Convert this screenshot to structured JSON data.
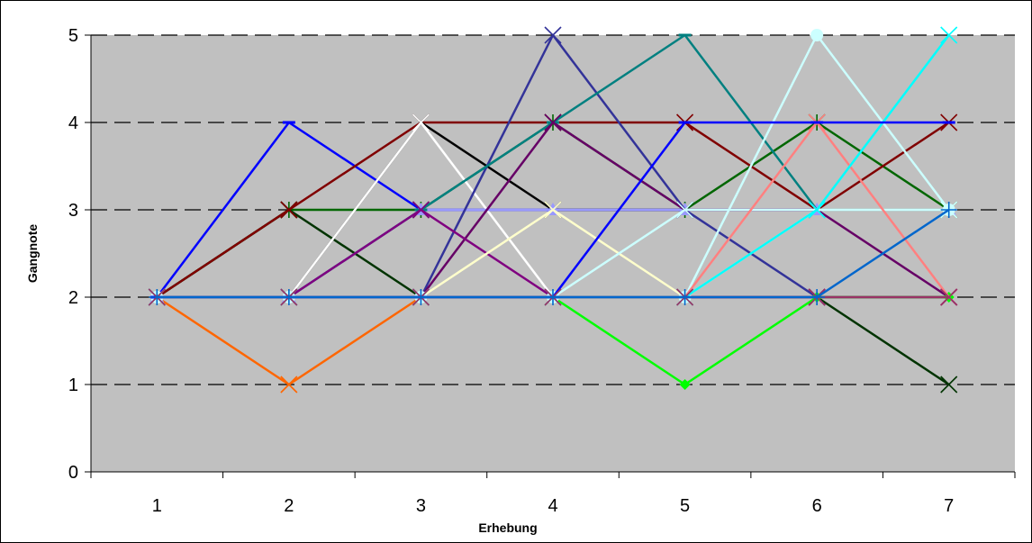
{
  "chart_data": {
    "type": "line",
    "title": "",
    "xlabel": "Erhebung",
    "ylabel": "Gangnote",
    "x": [
      1,
      2,
      3,
      4,
      5,
      6,
      7
    ],
    "ylim": [
      0,
      5
    ],
    "y_ticks": [
      0,
      1,
      2,
      3,
      4,
      5
    ],
    "grid": "dashed-horizontal",
    "legend": "none",
    "plot_background": "#c0c0c0",
    "series": [
      {
        "color": "#ff6600",
        "marker": "x",
        "values": [
          2,
          1,
          2,
          2,
          2,
          2,
          2
        ]
      },
      {
        "color": "#0000ff",
        "marker": "dash",
        "values": [
          2,
          4,
          3,
          3,
          3,
          3,
          3
        ]
      },
      {
        "color": "#006600",
        "marker": "star",
        "values": [
          2,
          3,
          3,
          4,
          3,
          4,
          3
        ]
      },
      {
        "color": "#003300",
        "marker": "x",
        "values": [
          2,
          3,
          2,
          2,
          2,
          2,
          1
        ]
      },
      {
        "color": "#800000",
        "marker": "x",
        "values": [
          2,
          3,
          4,
          4,
          4,
          3,
          4
        ]
      },
      {
        "color": "#000000",
        "marker": "x",
        "values": [
          2,
          2,
          4,
          3,
          3,
          3,
          3
        ]
      },
      {
        "color": "#ffffff",
        "marker": "x",
        "values": [
          2,
          2,
          4,
          2,
          2,
          2,
          2
        ]
      },
      {
        "color": "#9999ff",
        "marker": "triangle",
        "values": [
          2,
          2,
          3,
          3,
          3,
          3,
          3
        ]
      },
      {
        "color": "#333399",
        "marker": "x",
        "values": [
          2,
          2,
          2,
          5,
          3,
          2,
          2
        ]
      },
      {
        "color": "#008080",
        "marker": "dash",
        "values": [
          2,
          2,
          3,
          4,
          5,
          3,
          3
        ]
      },
      {
        "color": "#660066",
        "marker": "x",
        "values": [
          2,
          2,
          2,
          4,
          3,
          3,
          2
        ]
      },
      {
        "color": "#800080",
        "marker": "x",
        "values": [
          2,
          2,
          3,
          2,
          2,
          2,
          2
        ]
      },
      {
        "color": "#ffffcc",
        "marker": "x",
        "values": [
          2,
          2,
          2,
          3,
          2,
          3,
          3
        ]
      },
      {
        "color": "#00ff00",
        "marker": "diamond",
        "values": [
          2,
          2,
          2,
          2,
          1,
          2,
          2
        ]
      },
      {
        "color": "#ccffff",
        "marker": "x",
        "values": [
          2,
          2,
          2,
          2,
          3,
          3,
          3
        ]
      },
      {
        "color": "#ccffff",
        "marker": "circle",
        "values": [
          2,
          2,
          2,
          2,
          2,
          5,
          3
        ]
      },
      {
        "color": "#ff8080",
        "marker": "x",
        "values": [
          2,
          2,
          2,
          2,
          2,
          4,
          2
        ]
      },
      {
        "color": "#00ffff",
        "marker": "x",
        "values": [
          2,
          2,
          2,
          2,
          2,
          3,
          5
        ]
      },
      {
        "color": "#0000ff",
        "marker": "dash",
        "values": [
          2,
          2,
          2,
          2,
          4,
          4,
          4
        ]
      },
      {
        "color": "#993366",
        "marker": "x",
        "values": [
          2,
          2,
          2,
          2,
          2,
          2,
          2
        ]
      },
      {
        "color": "#0066cc",
        "marker": "plus",
        "values": [
          2,
          2,
          2,
          2,
          2,
          2,
          3
        ]
      }
    ]
  }
}
